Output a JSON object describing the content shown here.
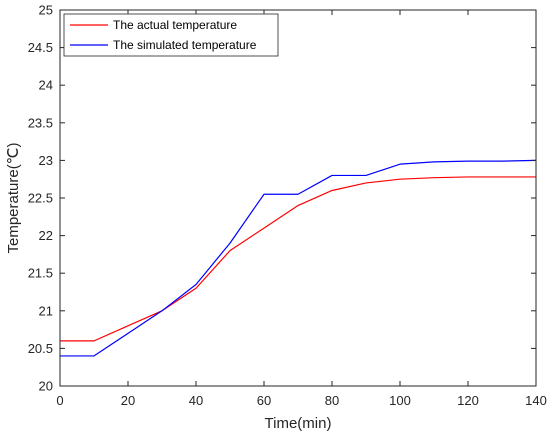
{
  "chart_data": {
    "type": "line",
    "xlabel": "Time(min)",
    "ylabel": "Temperature(℃)",
    "xlim": [
      0,
      140
    ],
    "ylim": [
      20,
      25
    ],
    "xticks": [
      0,
      20,
      40,
      60,
      80,
      100,
      120,
      140
    ],
    "yticks": [
      20,
      20.5,
      21,
      21.5,
      22,
      22.5,
      23,
      23.5,
      24,
      24.5,
      25
    ],
    "grid": false,
    "legend_position": "top-left",
    "series": [
      {
        "name": "The actual temperature",
        "color": "#ff0000",
        "x": [
          0,
          10,
          20,
          30,
          40,
          50,
          60,
          70,
          80,
          90,
          100,
          110,
          120,
          130,
          140
        ],
        "y": [
          20.6,
          20.6,
          20.8,
          21.0,
          21.3,
          21.8,
          22.1,
          22.4,
          22.6,
          22.7,
          22.75,
          22.77,
          22.78,
          22.78,
          22.78
        ]
      },
      {
        "name": "The simulated temperature",
        "color": "#0000ff",
        "x": [
          0,
          10,
          20,
          30,
          40,
          50,
          60,
          70,
          80,
          90,
          100,
          110,
          120,
          130,
          140
        ],
        "y": [
          20.4,
          20.4,
          20.7,
          21.0,
          21.35,
          21.9,
          22.55,
          22.55,
          22.8,
          22.8,
          22.95,
          22.98,
          22.99,
          22.99,
          23.0
        ]
      }
    ]
  }
}
